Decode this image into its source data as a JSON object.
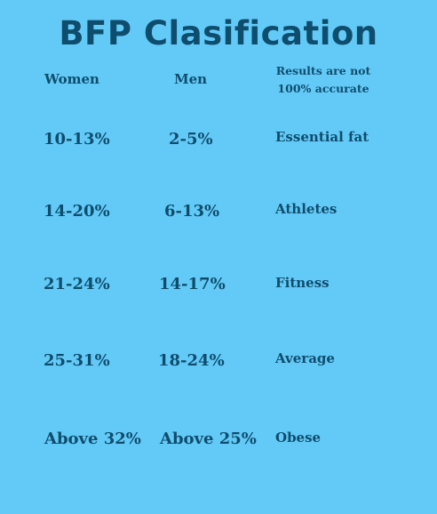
{
  "title": "BFP Clasification",
  "headers": {
    "women": "Women",
    "men": "Men",
    "note": "Results are not 100% accurate"
  },
  "rows": [
    {
      "women": "10-13%",
      "men": "2-5%",
      "category": "Essential fat"
    },
    {
      "women": "14-20%",
      "men": "6-13%",
      "category": "Athletes"
    },
    {
      "women": "21-24%",
      "men": "14-17%",
      "category": "Fitness"
    },
    {
      "women": "25-31%",
      "men": "18-24%",
      "category": "Average"
    },
    {
      "women": "Above 32%",
      "men": "Above 25%",
      "category": "Obese"
    }
  ],
  "colors": {
    "background": "#63caf7",
    "text": "#0f4d6e"
  }
}
